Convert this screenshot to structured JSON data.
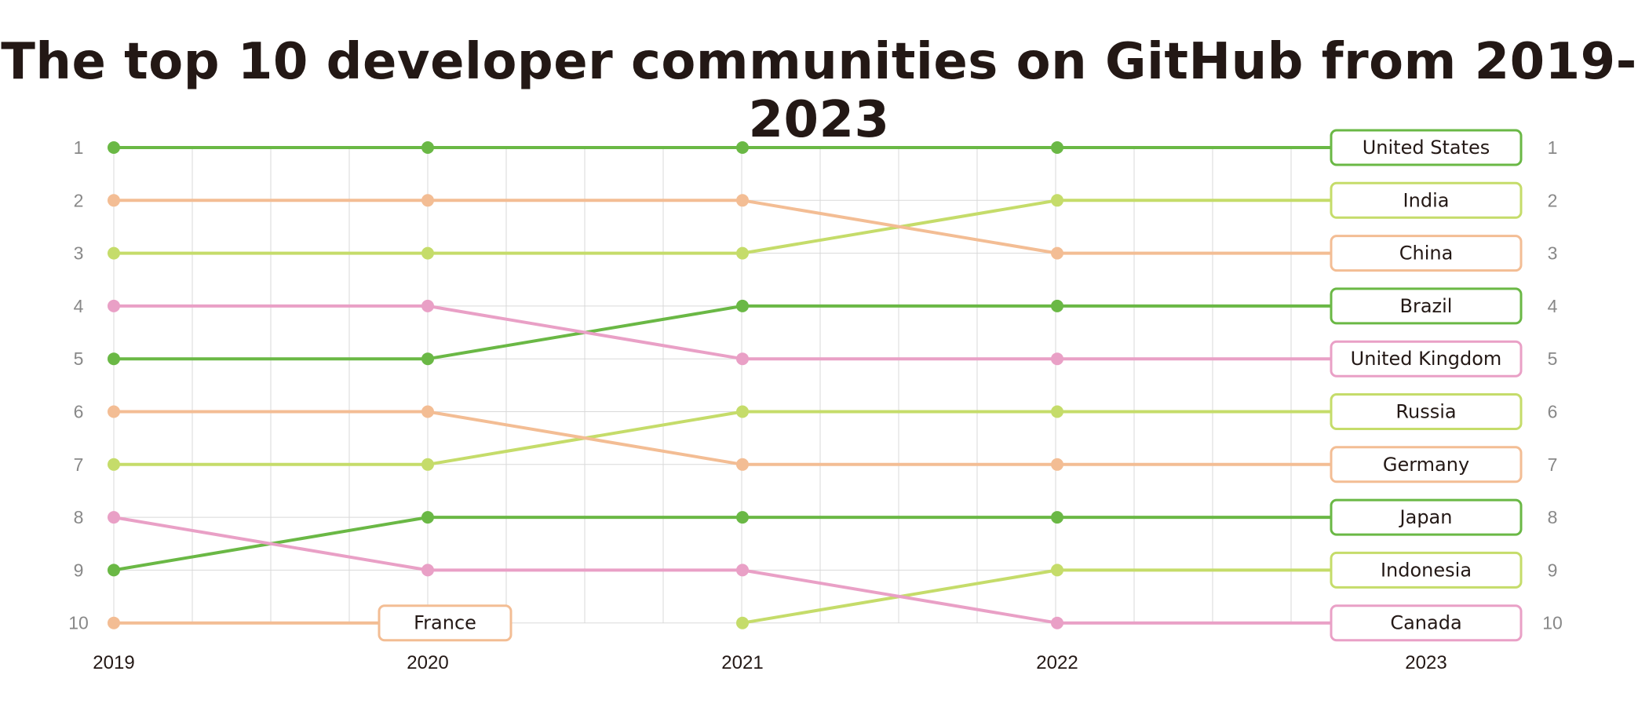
{
  "title": "The top 10 developer communities on GitHub from 2019-2023",
  "colors": {
    "dark_green": "#6ab845",
    "peach": "#f3bd94",
    "light_green": "#c5dc6a",
    "pink": "#e9a0c6",
    "grid": "#d9d9d9",
    "rank_text": "#888888",
    "text": "#231815"
  },
  "chart_data": {
    "type": "bump",
    "title": "The top 10 developer communities on GitHub from 2019-2023",
    "years": [
      "2019",
      "2020",
      "2021",
      "2022",
      "2023"
    ],
    "ranks": [
      "1",
      "2",
      "3",
      "4",
      "5",
      "6",
      "7",
      "8",
      "9",
      "10"
    ],
    "y_reversed": true,
    "grid": true,
    "series": [
      {
        "name": "United States",
        "color": "dark_green",
        "ranks": [
          1,
          1,
          1,
          1,
          1
        ]
      },
      {
        "name": "India",
        "color": "light_green",
        "ranks": [
          3,
          3,
          3,
          2,
          2
        ]
      },
      {
        "name": "China",
        "color": "peach",
        "ranks": [
          2,
          2,
          2,
          3,
          3
        ]
      },
      {
        "name": "Brazil",
        "color": "dark_green",
        "ranks": [
          5,
          5,
          4,
          4,
          4
        ]
      },
      {
        "name": "United Kingdom",
        "color": "pink",
        "ranks": [
          4,
          4,
          5,
          5,
          5
        ]
      },
      {
        "name": "Russia",
        "color": "light_green",
        "ranks": [
          7,
          7,
          6,
          6,
          6
        ]
      },
      {
        "name": "Germany",
        "color": "peach",
        "ranks": [
          6,
          6,
          7,
          7,
          7
        ]
      },
      {
        "name": "Japan",
        "color": "dark_green",
        "ranks": [
          9,
          8,
          8,
          8,
          8
        ]
      },
      {
        "name": "Indonesia",
        "color": "light_green",
        "ranks": [
          null,
          null,
          10,
          9,
          9
        ]
      },
      {
        "name": "Canada",
        "color": "pink",
        "ranks": [
          8,
          9,
          9,
          10,
          10
        ]
      },
      {
        "name": "France",
        "color": "peach",
        "ranks": [
          10,
          null,
          null,
          null,
          null
        ],
        "label_year": "2020"
      }
    ]
  }
}
